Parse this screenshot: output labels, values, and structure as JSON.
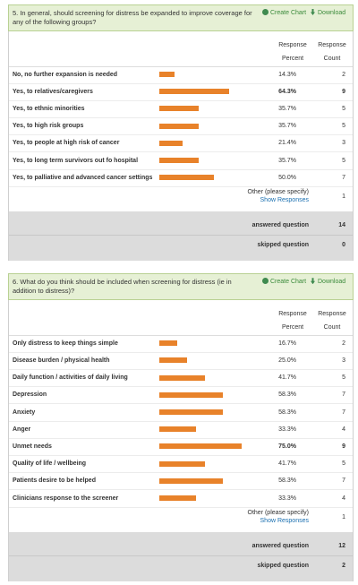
{
  "questions": [
    {
      "title": "5. In general, should screening for distress be expanded to improve coverage for any of the following groups?",
      "create_chart": "Create Chart",
      "download": "Download",
      "column_headers": [
        "Response Percent",
        "Response Count"
      ],
      "rows": [
        {
          "label": "No, no further expansion is needed",
          "percent": {
            "value": 14.3,
            "label": "14.3%"
          },
          "count": 2
        },
        {
          "label": "Yes, to relatives/caregivers",
          "percent": {
            "value": 64.3,
            "label": "64.3%"
          },
          "count": 9
        },
        {
          "label": "Yes, to ethnic minorities",
          "percent": {
            "value": 35.7,
            "label": "35.7%"
          },
          "count": 5
        },
        {
          "label": "Yes, to high risk groups",
          "percent": {
            "value": 35.7,
            "label": "35.7%"
          },
          "count": 5
        },
        {
          "label": "Yes, to people at high risk of cancer",
          "percent": {
            "value": 21.4,
            "label": "21.4%"
          },
          "count": 3
        },
        {
          "label": "Yes, to long term survivors out fo hospital",
          "percent": {
            "value": 35.7,
            "label": "35.7%"
          },
          "count": 5
        },
        {
          "label": "Yes, to palliative and advanced cancer settings",
          "percent": {
            "value": 50.0,
            "label": "50.0%"
          },
          "count": 7
        }
      ],
      "other": {
        "label": "Other (please specify)",
        "link": "Show Responses",
        "count": 1
      },
      "answered": {
        "label": "answered question",
        "count": 14
      },
      "skipped": {
        "label": "skipped question",
        "count": 0
      }
    },
    {
      "title": "6. What do you think should be included when screening for distress (ie in addition to distress)?",
      "create_chart": "Create Chart",
      "download": "Download",
      "column_headers": [
        "Response Percent",
        "Response Count"
      ],
      "rows": [
        {
          "label": "Only distress to keep things simple",
          "percent": {
            "value": 16.7,
            "label": "16.7%"
          },
          "count": 2
        },
        {
          "label": "Disease burden / physical health",
          "percent": {
            "value": 25.0,
            "label": "25.0%"
          },
          "count": 3
        },
        {
          "label": "Daily function / activities of daily living",
          "percent": {
            "value": 41.7,
            "label": "41.7%"
          },
          "count": 5
        },
        {
          "label": "Depression",
          "percent": {
            "value": 58.3,
            "label": "58.3%"
          },
          "count": 7
        },
        {
          "label": "Anxiety",
          "percent": {
            "value": 58.3,
            "label": "58.3%"
          },
          "count": 7
        },
        {
          "label": "Anger",
          "percent": {
            "value": 33.3,
            "label": "33.3%"
          },
          "count": 4
        },
        {
          "label": "Unmet needs",
          "percent": {
            "value": 75.0,
            "label": "75.0%"
          },
          "count": 9
        },
        {
          "label": "Quality of life / wellbeing",
          "percent": {
            "value": 41.7,
            "label": "41.7%"
          },
          "count": 5
        },
        {
          "label": "Patients desire to be helped",
          "percent": {
            "value": 58.3,
            "label": "58.3%"
          },
          "count": 7
        },
        {
          "label": "Clinicians response to the screener",
          "percent": {
            "value": 33.3,
            "label": "33.3%"
          },
          "count": 4
        }
      ],
      "other": {
        "label": "Other (please specify)",
        "link": "Show Responses",
        "count": 1
      },
      "answered": {
        "label": "answered question",
        "count": 12
      },
      "skipped": {
        "label": "skipped question",
        "count": 2
      }
    }
  ]
}
